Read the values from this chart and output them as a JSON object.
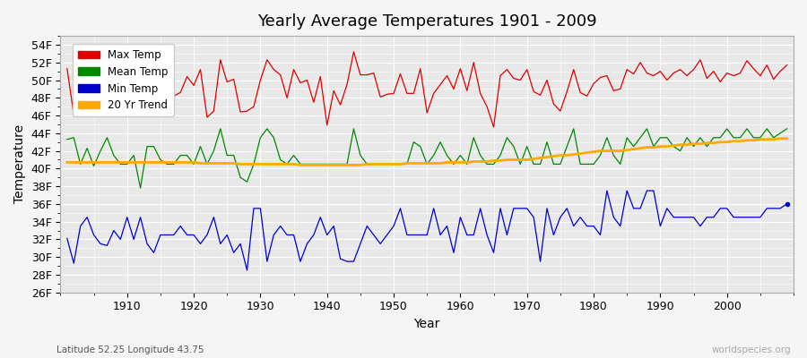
{
  "title": "Yearly Average Temperatures 1901 - 2009",
  "xlabel": "Year",
  "ylabel": "Temperature",
  "start_year": 1901,
  "end_year": 2009,
  "ylim": [
    26,
    55
  ],
  "yticks": [
    26,
    28,
    30,
    32,
    34,
    36,
    38,
    40,
    42,
    44,
    46,
    48,
    50,
    52,
    54
  ],
  "ytick_labels": [
    "26F",
    "28F",
    "30F",
    "32F",
    "34F",
    "36F",
    "38F",
    "40F",
    "42F",
    "44F",
    "46F",
    "48F",
    "50F",
    "52F",
    "54F"
  ],
  "xticks": [
    1910,
    1920,
    1930,
    1940,
    1950,
    1960,
    1970,
    1980,
    1990,
    2000
  ],
  "max_temp_color": "#dd0000",
  "mean_temp_color": "#008800",
  "min_temp_color": "#0000cc",
  "trend_color": "#ffaa00",
  "background_color": "#f0f0f0",
  "plot_bg_color": "#e8e8e8",
  "grid_color": "#ffffff",
  "bottom_left_text": "Latitude 52.25 Longitude 43.75",
  "bottom_right_text": "worldspecies.org",
  "legend_entries": [
    "Max Temp",
    "Mean Temp",
    "Min Temp",
    "20 Yr Trend"
  ],
  "max_temps": [
    51.3,
    46.1,
    48.6,
    48.3,
    47.2,
    48.5,
    52.2,
    48.6,
    48.0,
    48.5,
    48.0,
    46.9,
    50.4,
    50.3,
    48.0,
    47.8,
    48.2,
    48.6,
    50.4,
    49.4,
    51.2,
    45.8,
    46.5,
    52.3,
    49.8,
    50.1,
    46.4,
    46.5,
    47.0,
    50.0,
    52.3,
    51.2,
    50.6,
    48.0,
    51.2,
    49.7,
    50.0,
    47.5,
    50.4,
    44.9,
    48.8,
    47.2,
    49.5,
    53.2,
    50.6,
    50.6,
    50.8,
    48.1,
    48.4,
    48.5,
    50.7,
    48.5,
    48.5,
    51.3,
    46.3,
    48.5,
    49.5,
    50.5,
    49.0,
    51.3,
    48.8,
    52.0,
    48.5,
    47.0,
    44.7,
    50.5,
    51.2,
    50.2,
    50.0,
    51.2,
    48.7,
    48.3,
    50.0,
    47.3,
    46.5,
    48.7,
    51.2,
    48.6,
    48.2,
    49.6,
    50.3,
    50.5,
    48.8,
    49.0,
    51.2,
    50.7,
    52.0,
    50.8,
    50.5,
    51.0,
    50.0,
    50.8,
    51.2,
    50.5,
    51.2,
    52.3,
    50.2,
    51.0,
    49.8,
    50.8,
    50.5,
    50.8,
    52.2,
    51.3,
    50.5,
    51.7,
    50.1,
    51.0,
    51.7
  ],
  "mean_temps": [
    43.3,
    43.5,
    40.5,
    42.3,
    40.3,
    42.0,
    43.5,
    41.5,
    40.5,
    40.5,
    41.5,
    37.8,
    42.5,
    42.5,
    41.0,
    40.5,
    40.5,
    41.5,
    41.5,
    40.5,
    42.5,
    40.5,
    42.0,
    44.5,
    41.5,
    41.5,
    39.0,
    38.5,
    40.5,
    43.5,
    44.5,
    43.5,
    41.0,
    40.5,
    41.5,
    40.5,
    40.5,
    40.5,
    40.5,
    40.5,
    40.5,
    40.5,
    40.5,
    44.5,
    41.5,
    40.5,
    40.5,
    40.5,
    40.5,
    40.5,
    40.5,
    40.5,
    43.0,
    42.5,
    40.5,
    41.5,
    43.0,
    41.5,
    40.5,
    41.5,
    40.5,
    43.5,
    41.5,
    40.5,
    40.5,
    41.5,
    43.5,
    42.5,
    40.5,
    42.5,
    40.5,
    40.5,
    43.0,
    40.5,
    40.5,
    42.5,
    44.5,
    40.5,
    40.5,
    40.5,
    41.5,
    43.5,
    41.5,
    40.5,
    43.5,
    42.5,
    43.5,
    44.5,
    42.5,
    43.5,
    43.5,
    42.5,
    42.0,
    43.5,
    42.5,
    43.5,
    42.5,
    43.5,
    43.5,
    44.5,
    43.5,
    43.5,
    44.5,
    43.5,
    43.5,
    44.5,
    43.5,
    44.0,
    44.5
  ],
  "min_temps": [
    32.1,
    29.3,
    33.5,
    34.5,
    32.5,
    31.5,
    31.3,
    33.0,
    32.0,
    34.5,
    32.0,
    34.5,
    31.5,
    30.5,
    32.5,
    32.5,
    32.5,
    33.5,
    32.5,
    32.5,
    31.5,
    32.5,
    34.5,
    31.5,
    32.5,
    30.5,
    31.5,
    28.5,
    35.5,
    35.5,
    29.5,
    32.5,
    33.5,
    32.5,
    32.5,
    29.5,
    31.5,
    32.5,
    34.5,
    32.5,
    33.5,
    29.8,
    29.5,
    29.5,
    31.5,
    33.5,
    32.5,
    31.5,
    32.5,
    33.5,
    35.5,
    32.5,
    32.5,
    32.5,
    32.5,
    35.5,
    32.5,
    33.5,
    30.5,
    34.5,
    32.5,
    32.5,
    35.5,
    32.5,
    30.5,
    35.5,
    32.5,
    35.5,
    35.5,
    35.5,
    34.5,
    29.5,
    35.5,
    32.5,
    34.5,
    35.5,
    33.5,
    34.5,
    33.5,
    33.5,
    32.5,
    37.5,
    34.5,
    33.5,
    37.5,
    35.5,
    35.5,
    37.5,
    37.5,
    33.5,
    35.5,
    34.5,
    34.5,
    34.5,
    34.5,
    33.5,
    34.5,
    34.5,
    35.5,
    35.5,
    34.5,
    34.5,
    34.5,
    34.5,
    34.5,
    35.5,
    35.5,
    35.5,
    36.0
  ],
  "trend_temps": [
    40.7,
    40.7,
    40.7,
    40.7,
    40.7,
    40.7,
    40.7,
    40.7,
    40.7,
    40.7,
    40.7,
    40.7,
    40.7,
    40.7,
    40.7,
    40.7,
    40.7,
    40.7,
    40.7,
    40.7,
    40.6,
    40.6,
    40.6,
    40.6,
    40.6,
    40.6,
    40.5,
    40.5,
    40.5,
    40.5,
    40.5,
    40.5,
    40.5,
    40.5,
    40.5,
    40.4,
    40.4,
    40.4,
    40.4,
    40.4,
    40.4,
    40.4,
    40.4,
    40.4,
    40.4,
    40.5,
    40.5,
    40.5,
    40.5,
    40.5,
    40.5,
    40.6,
    40.6,
    40.6,
    40.6,
    40.6,
    40.6,
    40.7,
    40.7,
    40.7,
    40.7,
    40.8,
    40.8,
    40.8,
    40.9,
    40.9,
    41.0,
    41.0,
    41.0,
    41.0,
    41.1,
    41.2,
    41.3,
    41.4,
    41.5,
    41.5,
    41.6,
    41.7,
    41.8,
    41.9,
    42.0,
    42.0,
    42.0,
    42.0,
    42.1,
    42.2,
    42.3,
    42.4,
    42.4,
    42.5,
    42.5,
    42.6,
    42.7,
    42.7,
    42.8,
    42.8,
    42.9,
    42.9,
    43.0,
    43.0,
    43.1,
    43.1,
    43.2,
    43.2,
    43.3,
    43.3,
    43.3,
    43.4,
    43.4
  ]
}
